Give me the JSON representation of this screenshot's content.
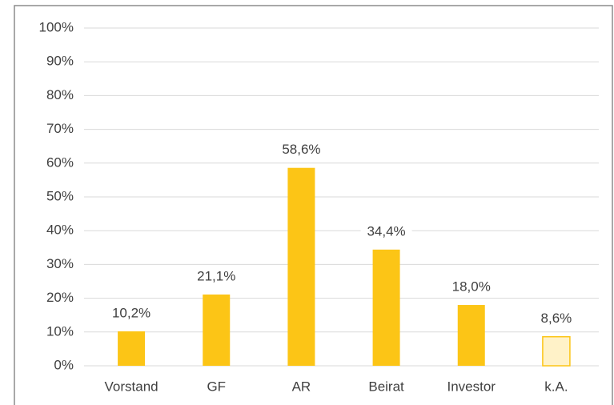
{
  "chart_data": {
    "type": "bar",
    "categories": [
      "Vorstand",
      "GF",
      "AR",
      "Beirat",
      "Investor",
      "k.A."
    ],
    "values": [
      10.2,
      21.1,
      58.6,
      34.4,
      18.0,
      8.6
    ],
    "value_labels": [
      "10,2%",
      "21,1%",
      "58,6%",
      "34,4%",
      "18,0%",
      "8,6%"
    ],
    "colors": [
      "#fcc516",
      "#fcc516",
      "#fcc516",
      "#fcc516",
      "#fcc516",
      "#fff2c8"
    ],
    "ylim": [
      0,
      100
    ],
    "yticks": [
      {
        "value": 0,
        "label": "0%"
      },
      {
        "value": 10,
        "label": "10%"
      },
      {
        "value": 20,
        "label": "20%"
      },
      {
        "value": 30,
        "label": "30%"
      },
      {
        "value": 40,
        "label": "40%"
      },
      {
        "value": 50,
        "label": "50%"
      },
      {
        "value": 60,
        "label": "60%"
      },
      {
        "value": 70,
        "label": "70%"
      },
      {
        "value": 80,
        "label": "80%"
      },
      {
        "value": 90,
        "label": "90%"
      },
      {
        "value": 100,
        "label": "100%"
      }
    ],
    "grid": true
  }
}
